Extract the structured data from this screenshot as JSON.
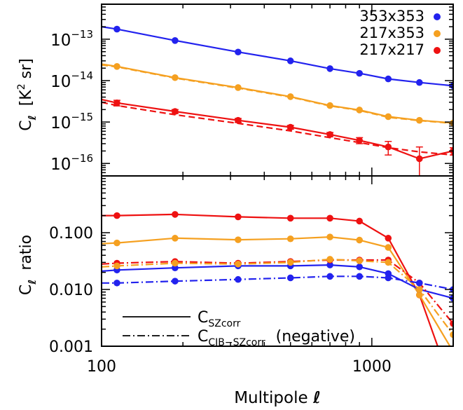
{
  "chart_data": [
    {
      "panel": "top",
      "type": "line",
      "ylabel": "C",
      "ylabel_sub": "ℓ",
      "ylabel_units": "[K",
      "ylabel_units_sup": "2",
      "ylabel_units_tail": "sr]",
      "xscale": "log",
      "yscale": "log",
      "xlim": [
        100,
        2000
      ],
      "ylim": [
        5e-17,
        7e-13
      ],
      "yticks": [
        {
          "value": 1e-13,
          "base": "10",
          "exp": "−13"
        },
        {
          "value": 1e-14,
          "base": "10",
          "exp": "−14"
        },
        {
          "value": 1e-15,
          "base": "10",
          "exp": "−15"
        },
        {
          "value": 1e-16,
          "base": "10",
          "exp": "−16"
        }
      ],
      "legend": [
        {
          "label": "353x353",
          "color": "#2222ee"
        },
        {
          "label": "217x353",
          "color": "#f5a020"
        },
        {
          "label": "217x217",
          "color": "#ee1111"
        }
      ],
      "series": [
        {
          "name": "353x353",
          "color": "#2222ee",
          "style": "solid",
          "x": [
            100,
            114,
            187,
            320,
            500,
            700,
            900,
            1150,
            1500,
            2000
          ],
          "y": [
            2e-13,
            1.75e-13,
            9.3e-14,
            4.9e-14,
            3e-14,
            1.95e-14,
            1.5e-14,
            1.1e-14,
            9e-15,
            7.5e-15
          ]
        },
        {
          "name": "217x353",
          "color": "#f5a020",
          "style": "solid",
          "x": [
            100,
            114,
            187,
            320,
            500,
            700,
            900,
            1150,
            1500,
            2000
          ],
          "y": [
            2.5e-14,
            2.2e-14,
            1.18e-14,
            6.8e-15,
            4.1e-15,
            2.5e-15,
            1.95e-15,
            1.35e-15,
            1.1e-15,
            9.5e-16
          ]
        },
        {
          "name": "217x353 (model)",
          "color": "#f5a020",
          "style": "dash",
          "x": [
            100,
            114,
            187,
            320,
            500,
            700,
            900,
            1150,
            1500,
            2000
          ],
          "y": [
            2.4e-14,
            2.15e-14,
            1.15e-14,
            6.6e-15,
            4e-15,
            2.45e-15,
            1.9e-15,
            1.3e-15,
            1.08e-15,
            9.3e-16
          ]
        },
        {
          "name": "217x217",
          "color": "#ee1111",
          "style": "solid",
          "x": [
            100,
            114,
            187,
            320,
            500,
            700,
            900,
            1150,
            1500,
            2000
          ],
          "y": [
            3.5e-15,
            2.9e-15,
            1.8e-15,
            1.1e-15,
            7.5e-16,
            5e-16,
            3.6e-16,
            2.5e-16,
            1.3e-16,
            2e-16
          ],
          "err": [
            0,
            4.5e-16,
            2e-16,
            1.2e-16,
            8e-17,
            6e-17,
            6e-17,
            9e-17,
            1.2e-16,
            4e-17
          ]
        },
        {
          "name": "217x217 (model)",
          "color": "#ee1111",
          "style": "dash",
          "x": [
            100,
            114,
            187,
            320,
            500,
            700,
            900,
            1150,
            1500,
            2000
          ],
          "y": [
            3e-15,
            2.5e-15,
            1.5e-15,
            9.3e-16,
            6.1e-16,
            4.2e-16,
            3.2e-16,
            2.4e-16,
            1.9e-16,
            1.6e-16
          ]
        }
      ]
    },
    {
      "panel": "bottom",
      "type": "line",
      "xlabel": "Multipole",
      "xlabel_symbol": "ℓ",
      "ylabel": "C",
      "ylabel_sub": "ℓ",
      "ylabel_tail": "ratio",
      "xscale": "log",
      "yscale": "log",
      "xlim": [
        100,
        2000
      ],
      "ylim": [
        0.001,
        1.0
      ],
      "xticks": [
        {
          "value": 100,
          "label": "100"
        },
        {
          "value": 1000,
          "label": "1000"
        }
      ],
      "yticks": [
        {
          "value": 0.1,
          "label": "0.100"
        },
        {
          "value": 0.01,
          "label": "0.010"
        },
        {
          "value": 0.001,
          "label": "0.001"
        }
      ],
      "legend": [
        {
          "label": "C",
          "sub": "SZcorr",
          "tail": "",
          "style": "solid"
        },
        {
          "label": "C",
          "sub": "CIB−SZcorr",
          "tail": "(negative)",
          "style": "dashdot"
        }
      ],
      "series": [
        {
          "name": "217x217 C_SZcorr",
          "color": "#ee1111",
          "style": "solid",
          "x": [
            100,
            114,
            187,
            320,
            500,
            700,
            900,
            1150,
            1500,
            2000
          ],
          "y": [
            0.2,
            0.2,
            0.21,
            0.19,
            0.18,
            0.18,
            0.16,
            0.08,
            0.008,
            0.00017
          ]
        },
        {
          "name": "217x353 C_SZcorr",
          "color": "#f5a020",
          "style": "solid",
          "x": [
            100,
            114,
            187,
            320,
            500,
            700,
            900,
            1150,
            1500,
            2000
          ],
          "y": [
            0.064,
            0.066,
            0.08,
            0.075,
            0.078,
            0.084,
            0.074,
            0.055,
            0.008,
            0.0008
          ]
        },
        {
          "name": "353x353 C_SZcorr",
          "color": "#2222ee",
          "style": "solid",
          "x": [
            100,
            114,
            187,
            320,
            500,
            700,
            900,
            1150,
            1500,
            2000
          ],
          "y": [
            0.021,
            0.022,
            0.024,
            0.026,
            0.026,
            0.027,
            0.025,
            0.019,
            0.01,
            0.007
          ]
        },
        {
          "name": "217x217 C_CIB-SZcorr",
          "color": "#ee1111",
          "style": "dashdot",
          "x": [
            100,
            114,
            187,
            320,
            500,
            700,
            900,
            1150,
            1500,
            2000
          ],
          "y": [
            0.028,
            0.029,
            0.031,
            0.029,
            0.031,
            0.033,
            0.033,
            0.033,
            0.013,
            0.0025
          ]
        },
        {
          "name": "217x353 C_CIB-SZcorr",
          "color": "#f5a020",
          "style": "dashdot",
          "x": [
            100,
            114,
            187,
            320,
            500,
            700,
            900,
            1150,
            1500,
            2000
          ],
          "y": [
            0.025,
            0.026,
            0.029,
            0.028,
            0.03,
            0.034,
            0.032,
            0.03,
            0.01,
            0.0016
          ]
        },
        {
          "name": "353x353 C_CIB-SZcorr",
          "color": "#2222ee",
          "style": "dashdot",
          "x": [
            100,
            114,
            187,
            320,
            500,
            700,
            900,
            1150,
            1500,
            2000
          ],
          "y": [
            0.013,
            0.013,
            0.014,
            0.015,
            0.016,
            0.017,
            0.017,
            0.016,
            0.013,
            0.01
          ]
        }
      ]
    }
  ]
}
